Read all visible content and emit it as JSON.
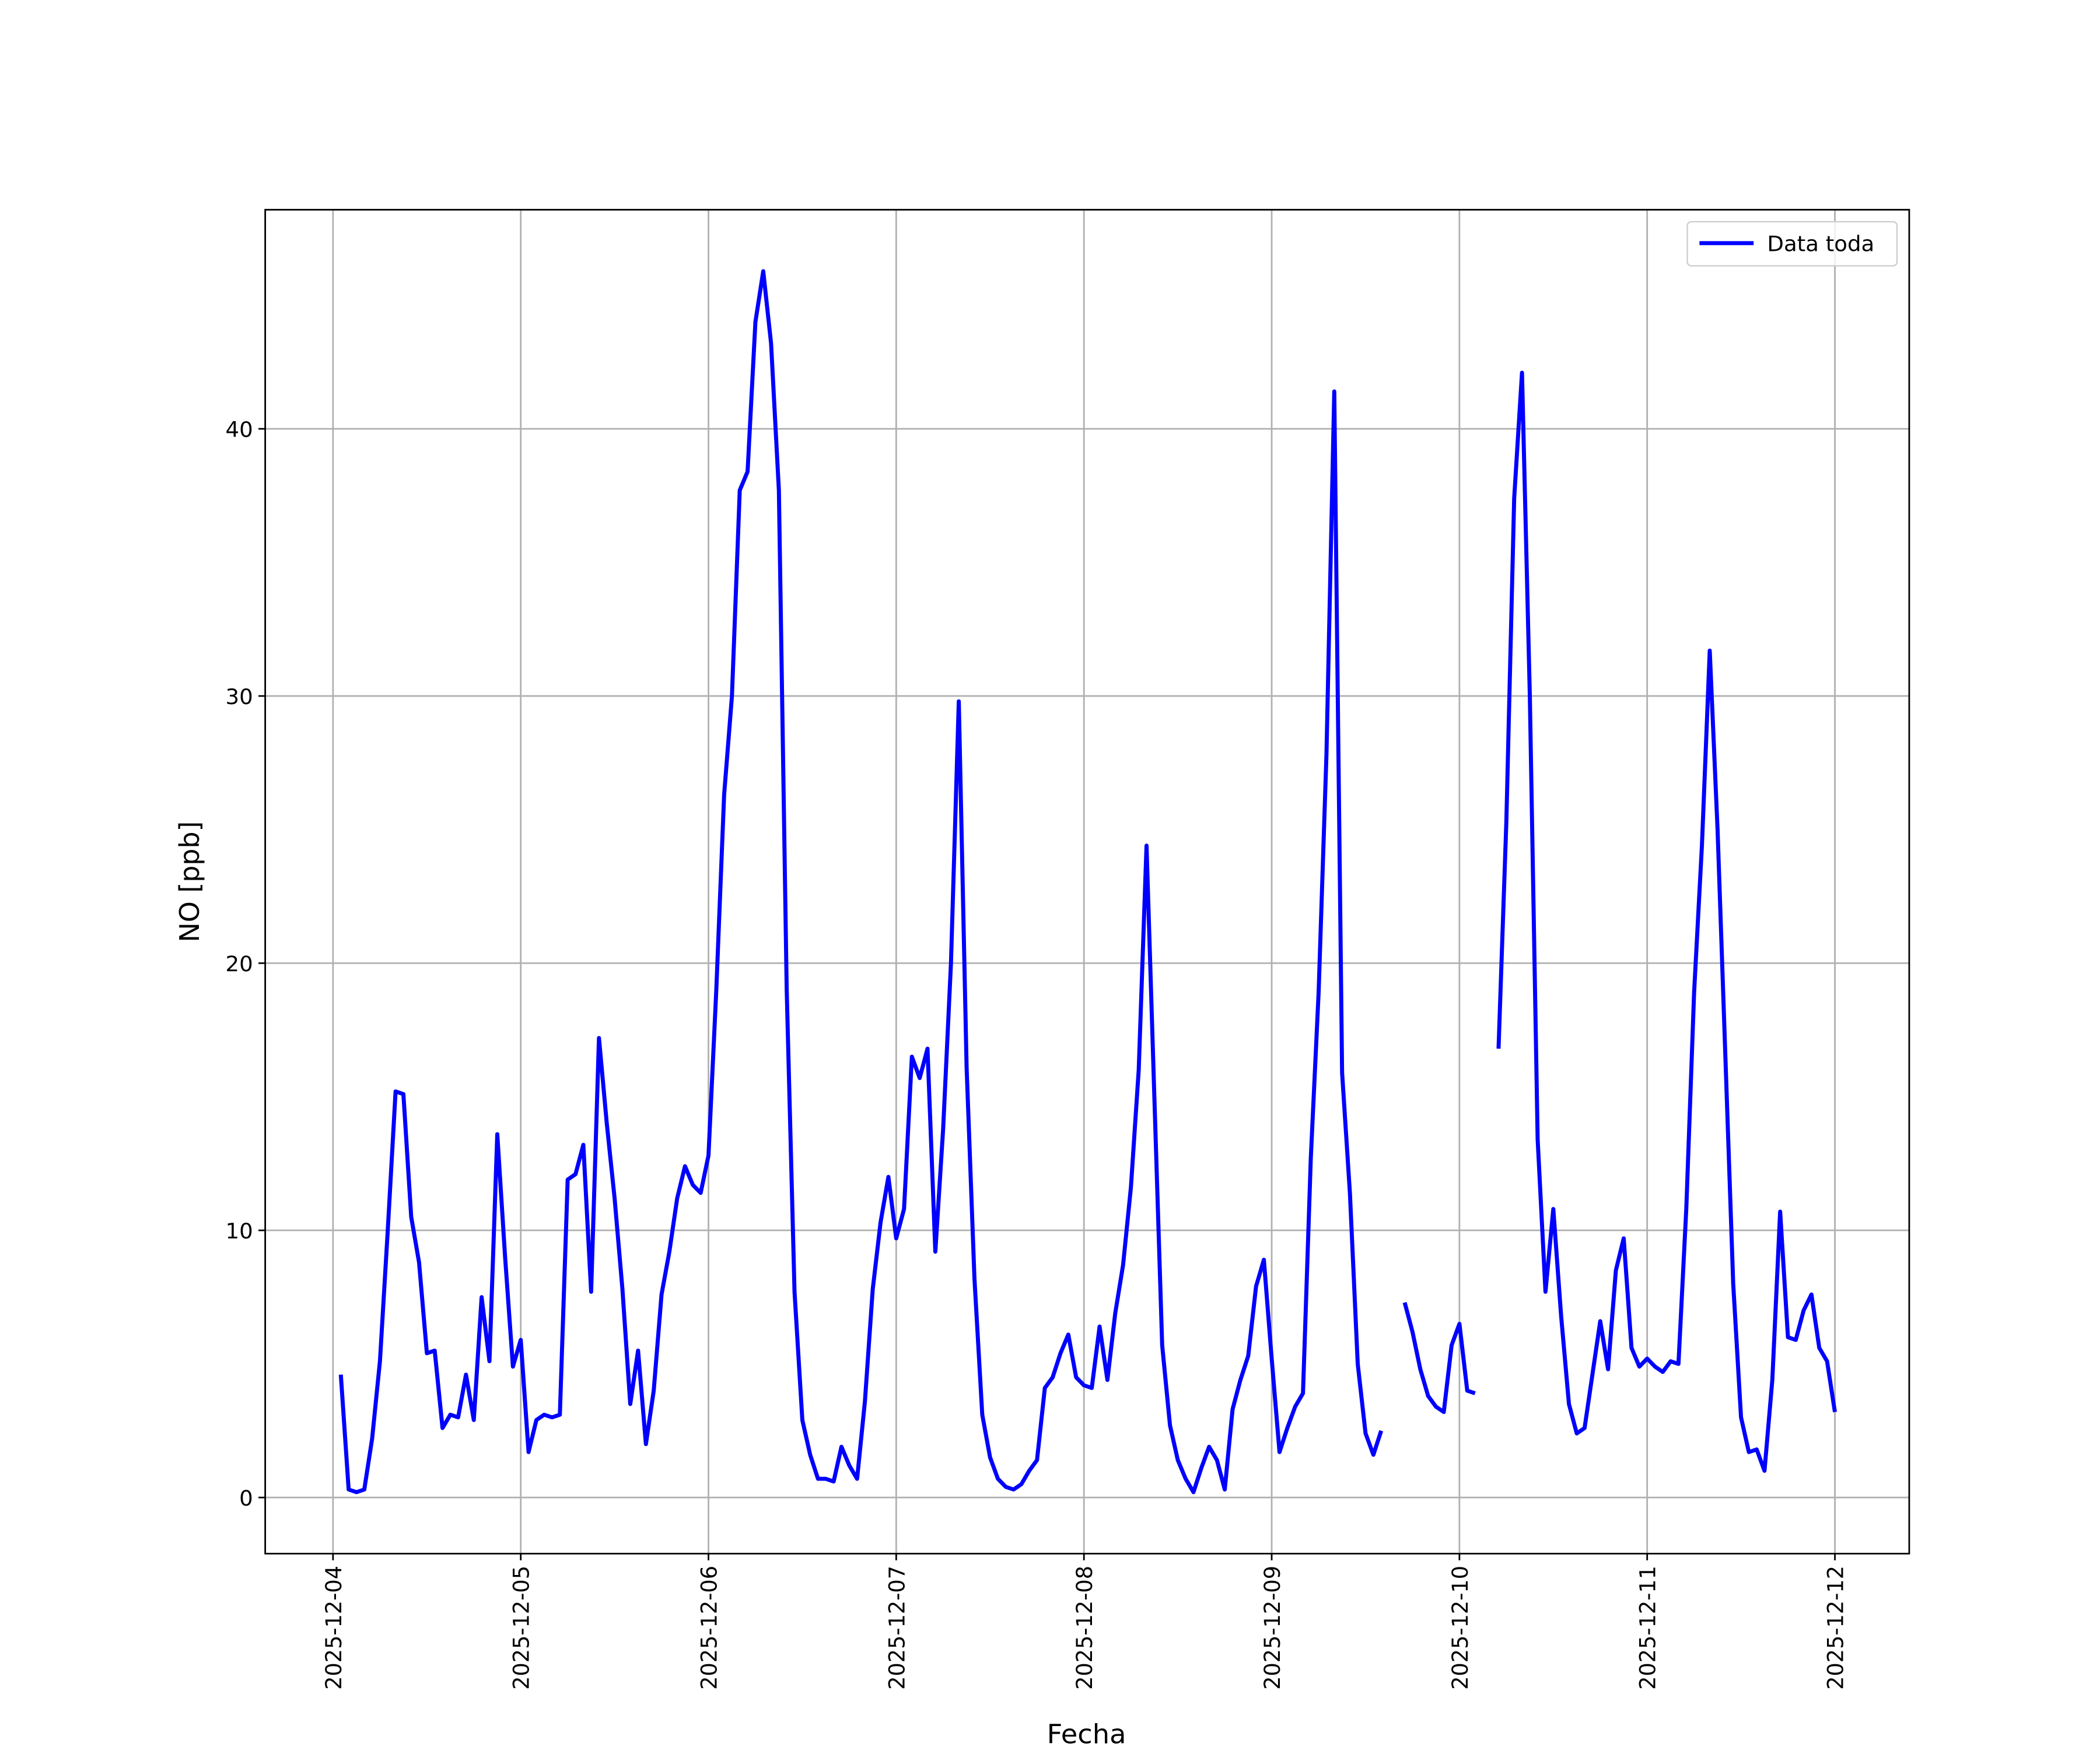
{
  "chart_data": {
    "type": "line",
    "xlabel": "Fecha",
    "ylabel": "NO [ppb]",
    "legend": "upper right",
    "grid": true,
    "xlim": [
      "2025-12-03T15:20",
      "2025-12-12T09:30"
    ],
    "xticks": [
      "2025-12-04",
      "2025-12-05",
      "2025-12-06",
      "2025-12-07",
      "2025-12-08",
      "2025-12-09",
      "2025-12-10",
      "2025-12-11",
      "2025-12-12"
    ],
    "ylim": [
      -2.1,
      48.2
    ],
    "yticks": [
      0,
      10,
      20,
      30,
      40
    ],
    "x": [
      "2025-12-04T01:00",
      "2025-12-04T02:00",
      "2025-12-04T03:00",
      "2025-12-04T04:00",
      "2025-12-04T05:00",
      "2025-12-04T06:00",
      "2025-12-04T07:00",
      "2025-12-04T08:00",
      "2025-12-04T09:00",
      "2025-12-04T10:00",
      "2025-12-04T11:00",
      "2025-12-04T12:00",
      "2025-12-04T13:00",
      "2025-12-04T14:00",
      "2025-12-04T15:00",
      "2025-12-04T16:00",
      "2025-12-04T17:00",
      "2025-12-04T18:00",
      "2025-12-04T19:00",
      "2025-12-04T20:00",
      "2025-12-04T21:00",
      "2025-12-04T22:00",
      "2025-12-04T23:00",
      "2025-12-05T00:00",
      "2025-12-05T01:00",
      "2025-12-05T02:00",
      "2025-12-05T03:00",
      "2025-12-05T04:00",
      "2025-12-05T05:00",
      "2025-12-05T06:00",
      "2025-12-05T07:00",
      "2025-12-05T08:00",
      "2025-12-05T09:00",
      "2025-12-05T10:00",
      "2025-12-05T11:00",
      "2025-12-05T12:00",
      "2025-12-05T13:00",
      "2025-12-05T14:00",
      "2025-12-05T15:00",
      "2025-12-05T16:00",
      "2025-12-05T17:00",
      "2025-12-05T18:00",
      "2025-12-05T19:00",
      "2025-12-05T20:00",
      "2025-12-05T21:00",
      "2025-12-05T22:00",
      "2025-12-05T23:00",
      "2025-12-06T00:00",
      "2025-12-06T01:00",
      "2025-12-06T02:00",
      "2025-12-06T03:00",
      "2025-12-06T04:00",
      "2025-12-06T05:00",
      "2025-12-06T06:00",
      "2025-12-06T07:00",
      "2025-12-06T08:00",
      "2025-12-06T09:00",
      "2025-12-06T10:00",
      "2025-12-06T11:00",
      "2025-12-06T12:00",
      "2025-12-06T13:00",
      "2025-12-06T14:00",
      "2025-12-06T15:00",
      "2025-12-06T16:00",
      "2025-12-06T17:00",
      "2025-12-06T18:00",
      "2025-12-06T19:00",
      "2025-12-06T20:00",
      "2025-12-06T21:00",
      "2025-12-06T22:00",
      "2025-12-06T23:00",
      "2025-12-07T00:00",
      "2025-12-07T01:00",
      "2025-12-07T02:00",
      "2025-12-07T03:00",
      "2025-12-07T04:00",
      "2025-12-07T05:00",
      "2025-12-07T06:00",
      "2025-12-07T07:00",
      "2025-12-07T08:00",
      "2025-12-07T09:00",
      "2025-12-07T10:00",
      "2025-12-07T11:00",
      "2025-12-07T12:00",
      "2025-12-07T13:00",
      "2025-12-07T14:00",
      "2025-12-07T15:00",
      "2025-12-07T16:00",
      "2025-12-07T17:00",
      "2025-12-07T18:00",
      "2025-12-07T19:00",
      "2025-12-07T20:00",
      "2025-12-07T21:00",
      "2025-12-07T22:00",
      "2025-12-07T23:00",
      "2025-12-08T00:00",
      "2025-12-08T01:00",
      "2025-12-08T02:00",
      "2025-12-08T03:00",
      "2025-12-08T04:00",
      "2025-12-08T05:00",
      "2025-12-08T06:00",
      "2025-12-08T07:00",
      "2025-12-08T08:00",
      "2025-12-08T09:00",
      "2025-12-08T10:00",
      "2025-12-08T11:00",
      "2025-12-08T12:00",
      "2025-12-08T13:00",
      "2025-12-08T14:00",
      "2025-12-08T15:00",
      "2025-12-08T16:00",
      "2025-12-08T17:00",
      "2025-12-08T18:00",
      "2025-12-08T19:00",
      "2025-12-08T20:00",
      "2025-12-08T21:00",
      "2025-12-08T22:00",
      "2025-12-08T23:00",
      "2025-12-09T00:00",
      "2025-12-09T01:00",
      "2025-12-09T02:00",
      "2025-12-09T03:00",
      "2025-12-09T04:00",
      "2025-12-09T05:00",
      "2025-12-09T06:00",
      "2025-12-09T07:00",
      "2025-12-09T08:00",
      "2025-12-09T09:00",
      "2025-12-09T10:00",
      "2025-12-09T11:00",
      "2025-12-09T12:00",
      "2025-12-09T13:00",
      "2025-12-09T14:00",
      "2025-12-09T15:00",
      "2025-12-09T16:00",
      "2025-12-09T17:00",
      "2025-12-09T18:00",
      "2025-12-09T19:00",
      "2025-12-09T20:00",
      "2025-12-09T21:00",
      "2025-12-09T22:00",
      "2025-12-09T23:00",
      "2025-12-10T00:00",
      "2025-12-10T01:00",
      "2025-12-10T02:00",
      "2025-12-10T03:00",
      "2025-12-10T04:00",
      "2025-12-10T05:00",
      "2025-12-10T06:00",
      "2025-12-10T07:00",
      "2025-12-10T08:00",
      "2025-12-10T09:00",
      "2025-12-10T10:00",
      "2025-12-10T11:00",
      "2025-12-10T12:00",
      "2025-12-10T13:00",
      "2025-12-10T14:00",
      "2025-12-10T15:00",
      "2025-12-10T16:00",
      "2025-12-10T17:00",
      "2025-12-10T18:00",
      "2025-12-10T19:00",
      "2025-12-10T20:00",
      "2025-12-10T21:00",
      "2025-12-10T22:00",
      "2025-12-10T23:00",
      "2025-12-11T00:00",
      "2025-12-11T01:00",
      "2025-12-11T02:00",
      "2025-12-11T03:00",
      "2025-12-11T04:00",
      "2025-12-11T05:00",
      "2025-12-11T06:00",
      "2025-12-11T07:00",
      "2025-12-11T08:00",
      "2025-12-11T09:00",
      "2025-12-11T10:00",
      "2025-12-11T11:00",
      "2025-12-11T12:00",
      "2025-12-11T13:00",
      "2025-12-11T14:00",
      "2025-12-11T15:00",
      "2025-12-11T16:00",
      "2025-12-11T17:00",
      "2025-12-11T18:00",
      "2025-12-11T19:00",
      "2025-12-11T20:00",
      "2025-12-11T21:00",
      "2025-12-11T22:00",
      "2025-12-11T23:00",
      "2025-12-12T00:00"
    ],
    "series": [
      {
        "name": "Data toda",
        "color": "#0000ff",
        "values": [
          4.6,
          0.3,
          0.2,
          0.3,
          2.2,
          5.1,
          10,
          15.2,
          15.1,
          10.5,
          8.8,
          5.4,
          5.5,
          2.6,
          3.1,
          3.0,
          4.6,
          2.9,
          7.5,
          5.1,
          13.6,
          9.0,
          4.9,
          5.9,
          1.7,
          2.9,
          3.1,
          3.0,
          3.1,
          11.9,
          12.1,
          13.2,
          7.7,
          17.2,
          14.0,
          11.2,
          7.8,
          3.5,
          5.5,
          2.0,
          4.0,
          7.6,
          9.2,
          11.2,
          12.4,
          11.7,
          11.4,
          12.8,
          19.0,
          26.3,
          30.0,
          37.7,
          38.4,
          44.0,
          45.9,
          43.2,
          37.7,
          19.0,
          7.7,
          2.9,
          1.6,
          0.7,
          0.7,
          0.6,
          1.9,
          1.2,
          0.7,
          3.6,
          7.8,
          10.3,
          12.0,
          9.7,
          10.8,
          16.5,
          15.7,
          16.8,
          9.2,
          13.8,
          20.0,
          29.8,
          16.1,
          8.2,
          3.1,
          1.5,
          0.7,
          0.4,
          0.3,
          0.5,
          1.0,
          1.4,
          4.1,
          4.5,
          5.4,
          6.1,
          4.5,
          4.2,
          4.1,
          6.4,
          4.4,
          6.9,
          8.7,
          11.6,
          16.0,
          24.4,
          15.0,
          5.7,
          2.7,
          1.4,
          0.7,
          0.2,
          1.1,
          1.9,
          1.4,
          0.3,
          3.3,
          4.4,
          5.3,
          7.9,
          8.9,
          5.2,
          1.7,
          2.6,
          3.4,
          3.9,
          12.7,
          18.9,
          27.8,
          41.4,
          15.9,
          11.4,
          5.0,
          2.4,
          1.6,
          2.5,
          null,
          null,
          7.3,
          6.2,
          4.8,
          3.8,
          3.4,
          3.2,
          5.7,
          6.5,
          4.0,
          3.9,
          null,
          null,
          16.8,
          25.3,
          37.4,
          42.1,
          30.0,
          13.4,
          7.7,
          10.8,
          6.8,
          3.5,
          2.4,
          2.6,
          4.6,
          6.6,
          4.8,
          8.5,
          9.7,
          5.6,
          4.9,
          5.2,
          4.9,
          4.7,
          5.1,
          5.0,
          10.8,
          18.9,
          24.4,
          31.7,
          25.0,
          16.5,
          8.0,
          3.0,
          1.7,
          1.8,
          1.0,
          4.4,
          10.7,
          6.0,
          5.9,
          7.0,
          7.6,
          5.6,
          5.1,
          3.2
        ]
      }
    ]
  }
}
